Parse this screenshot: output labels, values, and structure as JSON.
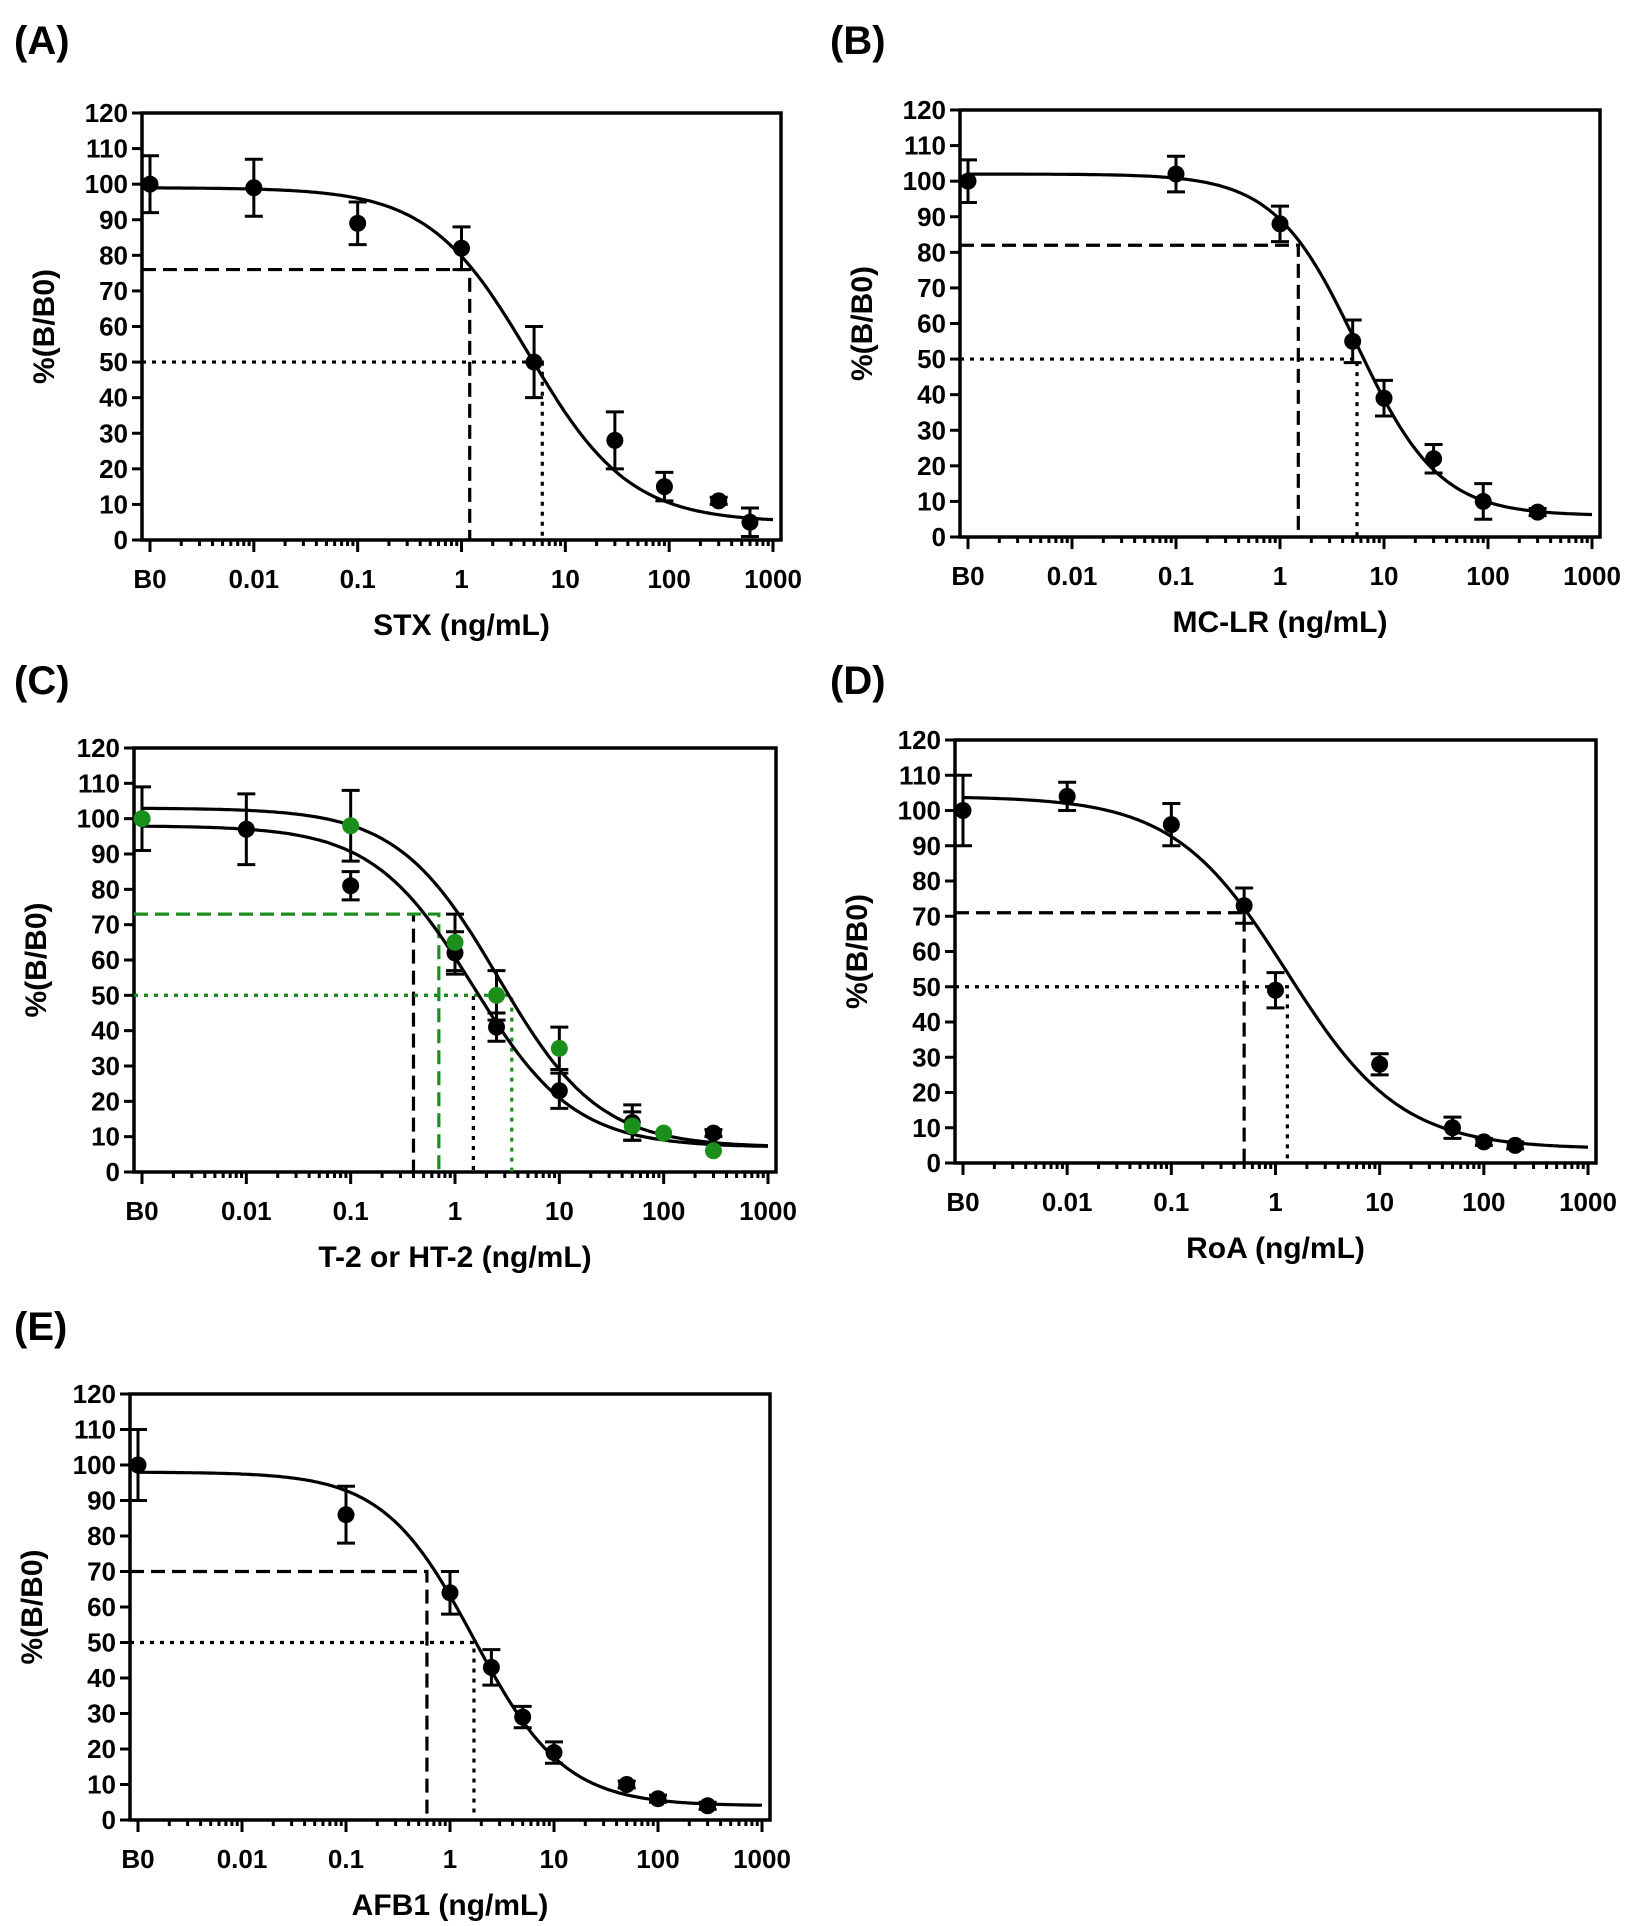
{
  "figure": {
    "ylabel": "%(B/B0)",
    "yticks": [
      "0",
      "10",
      "20",
      "30",
      "40",
      "50",
      "60",
      "70",
      "80",
      "90",
      "100",
      "110",
      "120"
    ],
    "xticks": [
      "B0",
      "0.01",
      "0.1",
      "1",
      "10",
      "100",
      "1000"
    ]
  },
  "colors": {
    "black": "#000000",
    "green": "#1b8f1b"
  },
  "chart_data": [
    {
      "label": "(A)",
      "type": "scatter",
      "xlabel": "STX (ng/mL)",
      "ylabel": "%(B/B0)",
      "x_scale": "log",
      "xlim": [
        0.001,
        1000
      ],
      "ylim": [
        0,
        120
      ],
      "series": [
        {
          "name": "STX",
          "color": "#000000",
          "x": [
            "B0",
            0.01,
            0.1,
            1,
            5,
            30,
            90,
            300,
            600
          ],
          "y": [
            100,
            99,
            89,
            82,
            50,
            28,
            15,
            11,
            5
          ],
          "err": [
            8,
            8,
            6,
            6,
            10,
            8,
            4,
            1,
            4
          ],
          "fit": {
            "top": 99,
            "bottom": 5,
            "ic50": 4.5,
            "hill": 0.9
          }
        }
      ],
      "reference_lines": [
        {
          "style": "dashed",
          "y": 76,
          "x": 1.2
        },
        {
          "style": "dotted",
          "y": 50,
          "x": 6
        }
      ]
    },
    {
      "label": "(B)",
      "type": "scatter",
      "xlabel": "MC-LR (ng/mL)",
      "ylabel": "%(B/B0)",
      "x_scale": "log",
      "xlim": [
        0.001,
        1000
      ],
      "ylim": [
        0,
        120
      ],
      "series": [
        {
          "name": "MC-LR",
          "color": "#000000",
          "x": [
            "B0",
            0.1,
            1,
            5,
            10,
            30,
            90,
            300
          ],
          "y": [
            100,
            102,
            88,
            55,
            39,
            22,
            10,
            7
          ],
          "err": [
            6,
            5,
            5,
            6,
            5,
            4,
            5,
            1
          ],
          "fit": {
            "top": 102,
            "bottom": 6,
            "ic50": 5.5,
            "hill": 1.1
          }
        }
      ],
      "reference_lines": [
        {
          "style": "dashed",
          "y": 82,
          "x": 1.5
        },
        {
          "style": "dotted",
          "y": 50,
          "x": 5.5
        }
      ]
    },
    {
      "label": "(C)",
      "type": "scatter",
      "xlabel": "T-2 or HT-2 (ng/mL)",
      "ylabel": "%(B/B0)",
      "x_scale": "log",
      "xlim": [
        0.001,
        1000
      ],
      "ylim": [
        0,
        120
      ],
      "series": [
        {
          "name": "T-2",
          "color": "#000000",
          "x": [
            "B0",
            0.01,
            0.1,
            1,
            2.5,
            10,
            50,
            300
          ],
          "y": [
            100,
            97,
            81,
            62,
            41,
            23,
            14,
            11
          ],
          "err": [
            9,
            10,
            4,
            6,
            4,
            5,
            5,
            1
          ],
          "fit": {
            "top": 98,
            "bottom": 7,
            "ic50": 1.5,
            "hill": 0.9
          }
        },
        {
          "name": "HT-2",
          "color": "#1b8f1b",
          "x": [
            "B0",
            0.1,
            1,
            2.5,
            10,
            50,
            100,
            300
          ],
          "y": [
            100,
            98,
            65,
            50,
            35,
            13,
            11,
            6
          ],
          "err": [
            0,
            10,
            8,
            7,
            6,
            4,
            0,
            0
          ],
          "fit": {
            "top": 103,
            "bottom": 7,
            "ic50": 2.6,
            "hill": 0.9
          }
        }
      ],
      "reference_lines": [
        {
          "style": "dashed",
          "y": 73,
          "x": 0.4,
          "color": "#000000"
        },
        {
          "style": "dashed",
          "y": 73,
          "x": 0.7,
          "color": "#1b8f1b"
        },
        {
          "style": "dotted",
          "y": 50,
          "x": 1.5,
          "color": "#000000"
        },
        {
          "style": "dotted",
          "y": 50,
          "x": 3.5,
          "color": "#1b8f1b"
        }
      ]
    },
    {
      "label": "(D)",
      "type": "scatter",
      "xlabel": "RoA (ng/mL)",
      "ylabel": "%(B/B0)",
      "x_scale": "log",
      "xlim": [
        0.001,
        1000
      ],
      "ylim": [
        0,
        120
      ],
      "series": [
        {
          "name": "RoA",
          "color": "#000000",
          "x": [
            "B0",
            0.01,
            0.1,
            0.5,
            1,
            10,
            50,
            100,
            200
          ],
          "y": [
            100,
            104,
            96,
            73,
            49,
            28,
            10,
            6,
            5
          ],
          "err": [
            10,
            4,
            6,
            5,
            5,
            3,
            3,
            1,
            1
          ],
          "fit": {
            "top": 104,
            "bottom": 4,
            "ic50": 1.3,
            "hill": 0.8
          }
        }
      ],
      "reference_lines": [
        {
          "style": "dashed",
          "y": 71,
          "x": 0.5
        },
        {
          "style": "dotted",
          "y": 50,
          "x": 1.3
        }
      ]
    },
    {
      "label": "(E)",
      "type": "scatter",
      "xlabel": "AFB1 (ng/mL)",
      "ylabel": "%(B/B0)",
      "x_scale": "log",
      "xlim": [
        0.001,
        1000
      ],
      "ylim": [
        0,
        120
      ],
      "series": [
        {
          "name": "AFB1",
          "color": "#000000",
          "x": [
            "B0",
            0.1,
            1,
            2.5,
            5,
            10,
            50,
            100,
            300
          ],
          "y": [
            100,
            86,
            64,
            43,
            29,
            19,
            10,
            6,
            4
          ],
          "err": [
            10,
            8,
            6,
            5,
            3,
            3,
            1,
            1,
            1
          ],
          "fit": {
            "top": 98,
            "bottom": 4,
            "ic50": 1.7,
            "hill": 1.0
          }
        }
      ],
      "reference_lines": [
        {
          "style": "dashed",
          "y": 70,
          "x": 0.6
        },
        {
          "style": "dotted",
          "y": 50,
          "x": 1.7
        }
      ]
    }
  ]
}
